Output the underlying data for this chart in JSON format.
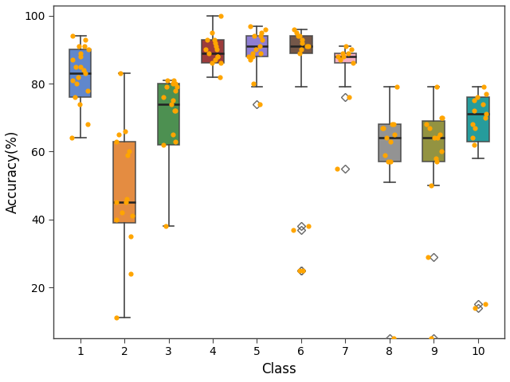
{
  "title": "",
  "xlabel": "Class",
  "ylabel": "Accuracy(%)",
  "xlim": [
    0.4,
    10.6
  ],
  "ylim": [
    5,
    103
  ],
  "yticks": [
    20,
    40,
    60,
    80,
    100
  ],
  "xticks": [
    1,
    2,
    3,
    4,
    5,
    6,
    7,
    8,
    9,
    10
  ],
  "box_colors": [
    "#4472C4",
    "#E07820",
    "#2E7D32",
    "#8B1A1A",
    "#7B68CC",
    "#5C3A28",
    "#F4A0B8",
    "#808080",
    "#808020",
    "#008B8B"
  ],
  "boxes": [
    {
      "whislo": 64,
      "q1": 76,
      "med": 83,
      "q3": 90,
      "whishi": 94,
      "fliers_out": [],
      "jitter": [
        94,
        93,
        91,
        91,
        90,
        89,
        88,
        87,
        85,
        85,
        84,
        83,
        82,
        81,
        80,
        78,
        76,
        74,
        68,
        64
      ]
    },
    {
      "whislo": 11,
      "q1": 39,
      "med": 45,
      "q3": 63,
      "whishi": 83,
      "fliers_out": [],
      "jitter": [
        83,
        66,
        65,
        63,
        60,
        59,
        46,
        45,
        45,
        42,
        41,
        40,
        35,
        24,
        11
      ]
    },
    {
      "whislo": 38,
      "q1": 62,
      "med": 74,
      "q3": 80,
      "whishi": 81,
      "fliers_out": [],
      "jitter": [
        81,
        81,
        80,
        80,
        79,
        79,
        78,
        76,
        75,
        74,
        72,
        72,
        65,
        63,
        62,
        38
      ]
    },
    {
      "whislo": 82,
      "q1": 86,
      "med": 89,
      "q3": 93,
      "whishi": 100,
      "fliers_out": [],
      "jitter": [
        100,
        95,
        93,
        93,
        92,
        91,
        90,
        90,
        89,
        88,
        88,
        87,
        86,
        86,
        82
      ]
    },
    {
      "whislo": 79,
      "q1": 88,
      "med": 91,
      "q3": 94,
      "whishi": 97,
      "fliers_out": [
        74
      ],
      "jitter": [
        97,
        96,
        95,
        94,
        94,
        93,
        91,
        90,
        89,
        89,
        88,
        88,
        87,
        80,
        74
      ]
    },
    {
      "whislo": 79,
      "q1": 89,
      "med": 91,
      "q3": 94,
      "whishi": 96,
      "fliers_out": [
        37,
        38,
        25,
        25
      ],
      "jitter": [
        96,
        95,
        94,
        94,
        93,
        92,
        91,
        91,
        90,
        89,
        37,
        38,
        25,
        25
      ]
    },
    {
      "whislo": 79,
      "q1": 86,
      "med": 88,
      "q3": 89,
      "whishi": 91,
      "fliers_out": [
        76,
        55
      ],
      "jitter": [
        91,
        90,
        89,
        89,
        88,
        88,
        87,
        86,
        76,
        55
      ]
    },
    {
      "whislo": 51,
      "q1": 57,
      "med": 64,
      "q3": 68,
      "whishi": 79,
      "fliers_out": [
        5
      ],
      "jitter": [
        79,
        68,
        68,
        67,
        67,
        65,
        64,
        63,
        59,
        57,
        57,
        5
      ]
    },
    {
      "whislo": 50,
      "q1": 57,
      "med": 64,
      "q3": 69,
      "whishi": 79,
      "fliers_out": [
        29,
        5
      ],
      "jitter": [
        79,
        70,
        70,
        68,
        67,
        65,
        64,
        64,
        60,
        58,
        57,
        50,
        29,
        5
      ]
    },
    {
      "whislo": 58,
      "q1": 63,
      "med": 71,
      "q3": 76,
      "whishi": 79,
      "fliers_out": [
        14,
        15
      ],
      "jitter": [
        79,
        77,
        76,
        75,
        74,
        72,
        71,
        70,
        68,
        67,
        64,
        62,
        14,
        15
      ]
    }
  ]
}
